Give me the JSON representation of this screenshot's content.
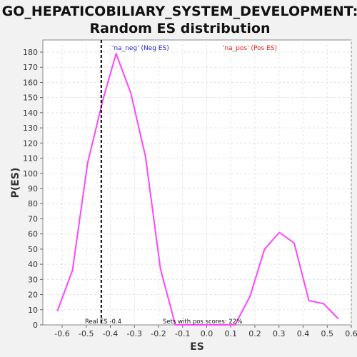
{
  "chart_data": {
    "type": "line",
    "title_line1": "GO_HEPATICOBILIARY_SYSTEM_DEVELOPMENT:",
    "title_line2": "Random ES distribution",
    "xlabel": "ES",
    "ylabel": "P(ES)",
    "xlim": [
      -0.68,
      0.6
    ],
    "ylim": [
      0,
      188
    ],
    "x_ticks": [
      -0.6,
      -0.5,
      -0.4,
      -0.3,
      -0.2,
      -0.1,
      0.0,
      0.1,
      0.2,
      0.3,
      0.4,
      0.5,
      0.6
    ],
    "x_tick_labels": [
      "-0.6",
      "-0.5",
      "-0.4",
      "-0.3",
      "-0.2",
      "-0.1",
      "0.0",
      "0.1",
      "0.2",
      "0.3",
      "0.4",
      "0.5",
      "0.6"
    ],
    "y_ticks": [
      0,
      10,
      20,
      30,
      40,
      50,
      60,
      70,
      80,
      90,
      100,
      110,
      120,
      130,
      140,
      150,
      160,
      170,
      180
    ],
    "grid": true,
    "series": [
      {
        "color": "#ff44ff",
        "x": [
          -0.62,
          -0.557,
          -0.494,
          -0.43,
          -0.376,
          -0.315,
          -0.254,
          -0.192,
          -0.13,
          -0.068,
          -0.005,
          0.057,
          0.118,
          0.18,
          0.24,
          0.302,
          0.363,
          0.424,
          0.485,
          0.546
        ],
        "y": [
          9,
          36,
          107,
          149,
          179,
          153,
          111,
          37,
          0,
          0,
          0,
          0,
          0,
          19,
          50,
          61,
          54,
          16,
          14,
          4
        ]
      }
    ],
    "real_es": {
      "x": -0.4375,
      "color": "#000000",
      "label": "Real ES -0.4"
    },
    "legend": {
      "neg_label": "'na_neg' (Neg ES)",
      "neg_color": "#2222dd",
      "pos_label": "'na_pos' (Pos ES)",
      "pos_color": "#ee2222"
    },
    "annotation": "Sets with pos scores: 22%"
  }
}
